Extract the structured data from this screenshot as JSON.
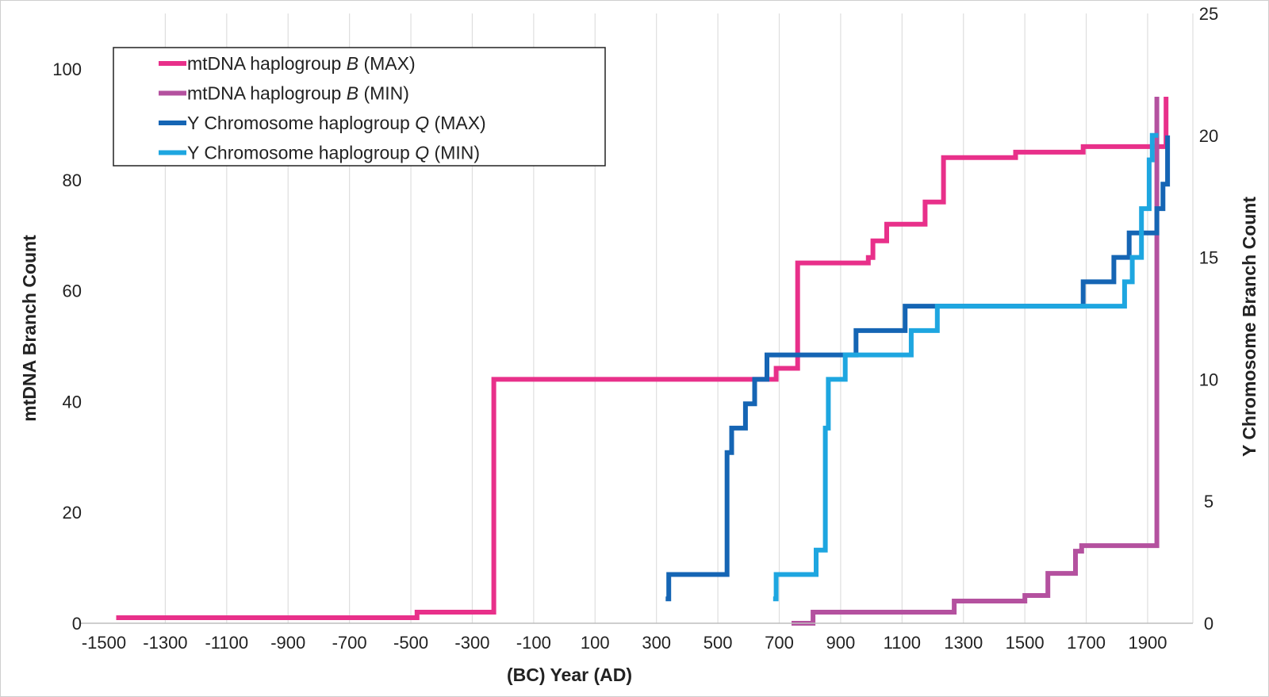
{
  "chart_data": {
    "type": "line",
    "step": true,
    "xlabel": "(BC) Year (AD)",
    "ylabel_left": "mtDNA Branch Count",
    "ylabel_right": "Y Chromosome Branch Count",
    "xlim": [
      -1500,
      1975
    ],
    "xticks": [
      -1500,
      -1300,
      -1100,
      -900,
      -700,
      -500,
      -300,
      -100,
      100,
      300,
      500,
      700,
      900,
      1100,
      1300,
      1500,
      1700,
      1900
    ],
    "ylim_left": [
      0,
      100
    ],
    "yticks_left": [
      0,
      20,
      40,
      60,
      80,
      100
    ],
    "ylim_right": [
      0,
      25
    ],
    "yticks_right": [
      0,
      5,
      10,
      15,
      20,
      25
    ],
    "grid": "vertical",
    "legend_position": "top-left",
    "series": [
      {
        "name": "mtDNA haplogroup B (MAX)",
        "axis": "left",
        "color": "#e8308a",
        "points": [
          [
            -1460,
            1
          ],
          [
            -480,
            1
          ],
          [
            -480,
            2
          ],
          [
            -230,
            2
          ],
          [
            -230,
            44
          ],
          [
            690,
            44
          ],
          [
            690,
            46
          ],
          [
            760,
            46
          ],
          [
            760,
            65
          ],
          [
            990,
            65
          ],
          [
            990,
            66
          ],
          [
            1005,
            66
          ],
          [
            1005,
            69
          ],
          [
            1050,
            69
          ],
          [
            1050,
            72
          ],
          [
            1175,
            72
          ],
          [
            1175,
            76
          ],
          [
            1235,
            76
          ],
          [
            1235,
            84
          ],
          [
            1470,
            84
          ],
          [
            1470,
            85
          ],
          [
            1690,
            85
          ],
          [
            1690,
            86
          ],
          [
            1960,
            86
          ],
          [
            1960,
            95
          ]
        ]
      },
      {
        "name": "mtDNA haplogroup B (MIN)",
        "axis": "left",
        "color": "#b4519f",
        "points": [
          [
            740,
            0
          ],
          [
            810,
            0
          ],
          [
            810,
            2
          ],
          [
            1270,
            2
          ],
          [
            1270,
            4
          ],
          [
            1500,
            4
          ],
          [
            1500,
            5
          ],
          [
            1575,
            5
          ],
          [
            1575,
            9
          ],
          [
            1665,
            9
          ],
          [
            1665,
            13
          ],
          [
            1685,
            13
          ],
          [
            1685,
            14
          ],
          [
            1930,
            14
          ],
          [
            1930,
            95
          ]
        ]
      },
      {
        "name": "Y Chromosome haplogroup Q (MAX)",
        "axis": "right",
        "color": "#1565b4",
        "points": [
          [
            330,
            1
          ],
          [
            340,
            1
          ],
          [
            340,
            2
          ],
          [
            530,
            2
          ],
          [
            530,
            7
          ],
          [
            545,
            7
          ],
          [
            545,
            8
          ],
          [
            590,
            8
          ],
          [
            590,
            9
          ],
          [
            620,
            9
          ],
          [
            620,
            10
          ],
          [
            660,
            10
          ],
          [
            660,
            11
          ],
          [
            950,
            11
          ],
          [
            950,
            12
          ],
          [
            1110,
            12
          ],
          [
            1110,
            13
          ],
          [
            1690,
            13
          ],
          [
            1690,
            14
          ],
          [
            1790,
            14
          ],
          [
            1790,
            15
          ],
          [
            1840,
            15
          ],
          [
            1840,
            16
          ],
          [
            1930,
            16
          ],
          [
            1930,
            17
          ],
          [
            1950,
            17
          ],
          [
            1950,
            18
          ],
          [
            1965,
            18
          ],
          [
            1965,
            20
          ]
        ]
      },
      {
        "name": "Y Chromosome haplogroup Q (MIN)",
        "axis": "right",
        "color": "#1ea6e0",
        "points": [
          [
            680,
            1
          ],
          [
            690,
            1
          ],
          [
            690,
            2
          ],
          [
            820,
            2
          ],
          [
            820,
            3
          ],
          [
            850,
            3
          ],
          [
            850,
            8
          ],
          [
            860,
            8
          ],
          [
            860,
            10
          ],
          [
            915,
            10
          ],
          [
            915,
            11
          ],
          [
            1130,
            11
          ],
          [
            1130,
            12
          ],
          [
            1215,
            12
          ],
          [
            1215,
            13
          ],
          [
            1825,
            13
          ],
          [
            1825,
            14
          ],
          [
            1850,
            14
          ],
          [
            1850,
            15
          ],
          [
            1880,
            15
          ],
          [
            1880,
            17
          ],
          [
            1905,
            17
          ],
          [
            1905,
            19
          ],
          [
            1915,
            19
          ],
          [
            1915,
            20
          ],
          [
            1935,
            20
          ]
        ]
      }
    ]
  },
  "legend": {
    "items": [
      {
        "prefix": "mtDNA haplogroup ",
        "italic": "B",
        "suffix": " (MAX)",
        "color": "#e8308a"
      },
      {
        "prefix": "mtDNA haplogroup ",
        "italic": "B",
        "suffix": " (MIN)",
        "color": "#b4519f"
      },
      {
        "prefix": "Y Chromosome haplogroup ",
        "italic": "Q",
        "suffix": " (MAX)",
        "color": "#1565b4"
      },
      {
        "prefix": "Y Chromosome haplogroup ",
        "italic": "Q",
        "suffix": " (MIN)",
        "color": "#1ea6e0"
      }
    ]
  }
}
